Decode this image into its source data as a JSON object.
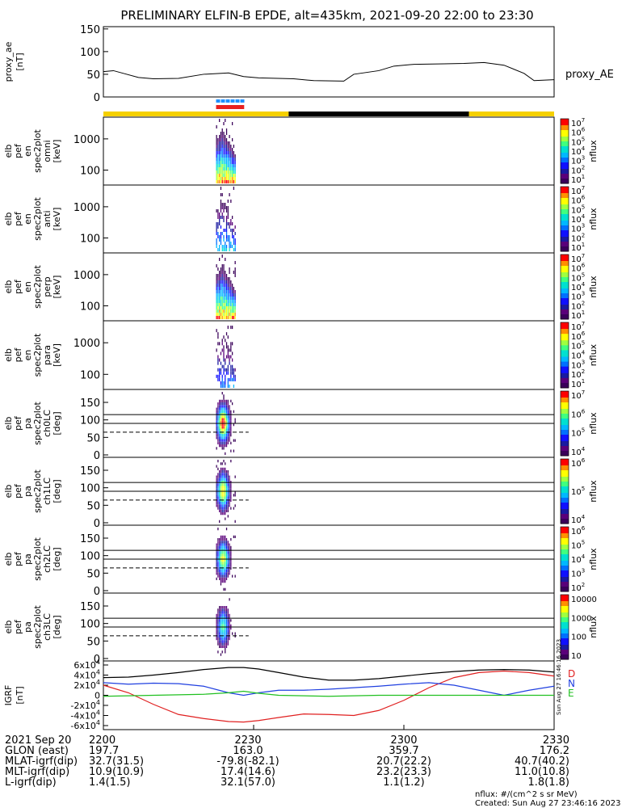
{
  "title": "PRELIMINARY ELFIN-B EPDE, alt=435km, 2021-09-20 22:00 to 23:30",
  "time_axis": {
    "start_min": 0,
    "end_min": 90
  },
  "panels": [
    {
      "id": "proxy_ae",
      "kind": "line",
      "ylabel": [
        "proxy_ae",
        "[nT]"
      ],
      "ylim": [
        0,
        155
      ],
      "yticks": [
        "0",
        "50",
        "100",
        "150"
      ],
      "yticks_val": [
        0,
        50,
        100,
        150
      ],
      "legend": "proxy_AE"
    },
    {
      "id": "en_omni",
      "kind": "spec",
      "ylabel": [
        "elb",
        "pef",
        "en",
        "spec2plot",
        "omni",
        "[keV]"
      ],
      "yticks": [
        "1000",
        "100"
      ],
      "cb_label": "nflux",
      "cb_ticks": [
        "10^7",
        "10^6",
        "10^5",
        "10^4",
        "10^3",
        "10^2",
        "10^1"
      ]
    },
    {
      "id": "en_anti",
      "kind": "spec",
      "ylabel": [
        "elb",
        "pef",
        "en",
        "spec2plot",
        "anti",
        "[keV]"
      ],
      "yticks": [
        "1000",
        "100"
      ],
      "cb_label": "nflux",
      "cb_ticks": [
        "10^7",
        "10^6",
        "10^5",
        "10^4",
        "10^3",
        "10^2",
        "10^1"
      ]
    },
    {
      "id": "en_perp",
      "kind": "spec",
      "ylabel": [
        "elb",
        "pef",
        "en",
        "spec2plot",
        "perp",
        "[keV]"
      ],
      "yticks": [
        "1000",
        "100"
      ],
      "cb_label": "nflux",
      "cb_ticks": [
        "10^7",
        "10^6",
        "10^5",
        "10^4",
        "10^3",
        "10^2",
        "10^1"
      ]
    },
    {
      "id": "en_para",
      "kind": "spec",
      "ylabel": [
        "elb",
        "pef",
        "en",
        "spec2plot",
        "para",
        "[keV]"
      ],
      "yticks": [
        "1000",
        "100"
      ],
      "cb_label": "nflux",
      "cb_ticks": [
        "10^7",
        "10^6",
        "10^5",
        "10^4",
        "10^3",
        "10^2",
        "10^1"
      ]
    },
    {
      "id": "pa_ch0",
      "kind": "pa",
      "ylabel": [
        "elb",
        "pef",
        "pa",
        "spec2plot",
        "ch0LC",
        "[deg]"
      ],
      "yticks": [
        "150",
        "100",
        "50",
        "0"
      ],
      "cb_label": "nflux",
      "cb_ticks": [
        "10^7",
        "10^6",
        "10^5",
        "10^4"
      ]
    },
    {
      "id": "pa_ch1",
      "kind": "pa",
      "ylabel": [
        "elb",
        "pef",
        "pa",
        "spec2plot",
        "ch1LC",
        "[deg]"
      ],
      "yticks": [
        "150",
        "100",
        "50",
        "0"
      ],
      "cb_label": "nflux",
      "cb_ticks": [
        "10^6",
        "10^5",
        "10^4"
      ]
    },
    {
      "id": "pa_ch2",
      "kind": "pa",
      "ylabel": [
        "elb",
        "pef",
        "pa",
        "spec2plot",
        "ch2LC",
        "[deg]"
      ],
      "yticks": [
        "150",
        "100",
        "50",
        "0"
      ],
      "cb_label": "nflux",
      "cb_ticks": [
        "10^6",
        "10^5",
        "10^4",
        "10^3",
        "10^2"
      ]
    },
    {
      "id": "pa_ch3",
      "kind": "pa",
      "ylabel": [
        "elb",
        "pef",
        "pa",
        "spec2plot",
        "ch3LC",
        "[deg]"
      ],
      "yticks": [
        "150",
        "100",
        "50",
        "0"
      ],
      "cb_label": "nflux",
      "cb_ticks": [
        "10000",
        "1000",
        "100",
        "10"
      ]
    },
    {
      "id": "igrf",
      "kind": "lines",
      "ylabel": [
        "IGRF",
        "[nT]"
      ],
      "yticks": [
        "6x10^4",
        "4x10^4",
        "2x10^4",
        "0",
        "-2x10^4",
        "-4x10^4",
        "-6x10^4"
      ],
      "yticks_val": [
        60000,
        40000,
        20000,
        0,
        -20000,
        -40000,
        -60000
      ],
      "ylim": [
        -68000,
        68000
      ],
      "legend": [
        "D",
        "N",
        "E"
      ],
      "legend_colors": [
        "#e02020",
        "#2040e0",
        "#20c020"
      ]
    }
  ],
  "xaxis_rows": [
    {
      "label": "2021 Sep 20",
      "values": [
        "2200",
        "2230",
        "2300",
        "2330"
      ]
    },
    {
      "label": "GLON (east)",
      "values": [
        "197.7",
        "163.0",
        "359.7",
        "176.2"
      ]
    },
    {
      "label": "MLAT-igrf(dip)",
      "values": [
        "32.7(31.5)",
        "-79.8(-82.1)",
        "20.7(22.2)",
        "40.7(40.2)"
      ]
    },
    {
      "label": "MLT-igrf(dip)",
      "values": [
        "10.9(10.9)",
        "17.4(14.6)",
        "23.2(23.3)",
        "11.0(10.8)"
      ]
    },
    {
      "label": "L-igrf(dip)",
      "values": [
        "1.4(1.5)",
        "32.1(57.0)",
        "1.1(1.2)",
        "1.8(1.8)"
      ]
    }
  ],
  "footer": {
    "units": "nflux: #/(cm^2 s sr MeV)",
    "created": "Created: Sun Aug 27 23:46:16 2023",
    "stamp": "Sun Aug 27 16:46:16 2023"
  },
  "colors": {
    "sunlight": "#f5d000",
    "shadow": "#000000",
    "science_blue": "#1e90ff",
    "science_red": "#e82020"
  },
  "chart_data": {
    "type": "line",
    "title": "PRELIMINARY ELFIN-B EPDE, alt=435km, 2021-09-20 22:00 to 23:30",
    "x_unit": "minutes after 22:00 UT",
    "series": [
      {
        "name": "proxy_AE",
        "x": [
          0,
          2,
          4,
          7,
          10,
          15,
          20,
          25,
          28,
          31,
          38,
          42,
          48,
          50,
          55,
          58,
          62,
          68,
          72,
          76,
          80,
          84,
          86,
          90
        ],
        "values": [
          56,
          58,
          52,
          43,
          40,
          41,
          50,
          53,
          45,
          42,
          40,
          36,
          35,
          50,
          58,
          68,
          72,
          73,
          74,
          76,
          70,
          52,
          36,
          38
        ]
      },
      {
        "name": "D",
        "x": [
          0,
          5,
          10,
          15,
          20,
          25,
          28,
          31,
          35,
          40,
          45,
          50,
          55,
          60,
          65,
          70,
          75,
          80,
          85,
          90
        ],
        "values": [
          20000,
          5000,
          -18000,
          -38000,
          -46000,
          -52000,
          -53000,
          -50000,
          -44000,
          -37000,
          -38000,
          -40000,
          -30000,
          -10000,
          15000,
          35000,
          45000,
          48000,
          45000,
          38000
        ]
      },
      {
        "name": "N",
        "x": [
          0,
          5,
          10,
          15,
          20,
          25,
          28,
          31,
          35,
          40,
          45,
          50,
          55,
          60,
          65,
          70,
          75,
          80,
          85,
          90
        ],
        "values": [
          25000,
          22000,
          24000,
          23000,
          18000,
          5000,
          0,
          5000,
          10000,
          10000,
          12000,
          15000,
          18000,
          22000,
          25000,
          20000,
          10000,
          0,
          10000,
          18000
        ]
      },
      {
        "name": "E",
        "x": [
          0,
          5,
          10,
          15,
          20,
          25,
          28,
          31,
          35,
          40,
          45,
          50,
          55,
          60,
          65,
          70,
          75,
          80,
          85,
          90
        ],
        "values": [
          -2000,
          -1000,
          0,
          1000,
          2000,
          5000,
          8000,
          4000,
          0,
          -1000,
          -2000,
          -1000,
          0,
          0,
          0,
          0,
          0,
          0,
          0,
          0
        ]
      },
      {
        "name": "|B|",
        "x": [
          0,
          5,
          10,
          15,
          20,
          25,
          28,
          31,
          35,
          40,
          45,
          50,
          55,
          60,
          65,
          70,
          75,
          80,
          85,
          90
        ],
        "values": [
          35000,
          36000,
          40000,
          45000,
          51000,
          55000,
          55000,
          52000,
          45000,
          36000,
          30000,
          30000,
          33000,
          38000,
          43000,
          47000,
          50000,
          51000,
          50000,
          46000
        ]
      }
    ],
    "spectrogram_times": {
      "x_range_min": [
        22.5,
        26.5
      ],
      "pa_lines_deg": [
        115,
        90,
        65
      ]
    }
  }
}
